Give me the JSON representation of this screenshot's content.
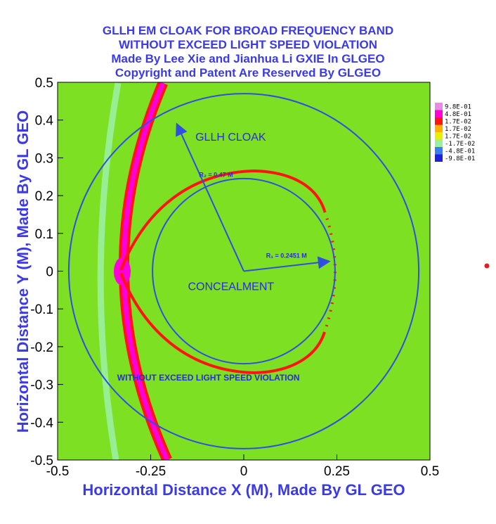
{
  "titles": [
    "GLLH EM CLOAK FOR BROAD FREQUENCY BAND",
    "WITHOUT EXCEED LIGHT SPEED VIOLATION",
    "Made By Lee Xie and Jianhua Li GXIE In GLGEO",
    "Copyright and Patent Are Reserved By GLGEO"
  ],
  "chart_data": {
    "type": "heatmap",
    "xlabel": "Horizontal Distance X (M), Made By GL GEO",
    "ylabel": "Horizontal Distance Y (M), Made By GL GEO",
    "xlim": [
      -0.5,
      0.5
    ],
    "ylim": [
      -0.5,
      0.5
    ],
    "xticks": [
      -0.5,
      -0.25,
      0,
      0.25,
      0.5
    ],
    "xtick_labels": [
      "-0.5",
      "-0.25",
      "0",
      "0.25",
      "0.5"
    ],
    "yticks": [
      0.5,
      0.4,
      0.3,
      0.2,
      0.1,
      0,
      -0.1,
      -0.2,
      -0.3,
      -0.4,
      -0.5
    ],
    "ytick_labels": [
      "0.5",
      "0.4",
      "0.3",
      "0.2",
      "0.1",
      "0",
      "-0.1",
      "-0.2",
      "-0.3",
      "-0.4",
      "-0.5"
    ],
    "background_color": "#7ee022",
    "circles": [
      {
        "radius": 0.47,
        "color": "#2e4fe0"
      },
      {
        "radius": 0.2451,
        "color": "#2e4fe0"
      }
    ],
    "arrows": [
      {
        "from": [
          0,
          0
        ],
        "to": [
          -0.18,
          0.39
        ]
      },
      {
        "from": [
          0,
          0
        ],
        "to": [
          0.23,
          0.026
        ]
      }
    ],
    "annotations": [
      {
        "text": "GLLH CLOAK",
        "x": -0.13,
        "y": 0.345,
        "size": 16
      },
      {
        "text": "R₂ = 0.47 M",
        "x": -0.12,
        "y": 0.25,
        "size": 9
      },
      {
        "text": "R₁ = 0.2451 M",
        "x": 0.06,
        "y": 0.035,
        "size": 9
      },
      {
        "text": "CONCEALMENT",
        "x": -0.15,
        "y": -0.05,
        "size": 16
      },
      {
        "text": "WITHOUT EXCEED LIGHT SPEED VIOLATION",
        "x": -0.34,
        "y": -0.29,
        "size": 12
      }
    ],
    "legend": {
      "placement": "right",
      "entries": [
        {
          "label": "9.8E-01",
          "color": "#e68ce6"
        },
        {
          "label": "4.8E-01",
          "color": "#ff00d8"
        },
        {
          "label": "1.7E-02",
          "color": "#ff1414"
        },
        {
          "label": "1.7E-02",
          "color": "#ffb000"
        },
        {
          "label": "1.7E-02",
          "color": "#e8f000"
        },
        {
          "label": "-1.7E-02",
          "color": "#9af0a0"
        },
        {
          "label": "-4.8E-01",
          "color": "#3a7ff0"
        },
        {
          "label": "-9.8E-01",
          "color": "#2020e0"
        }
      ]
    }
  }
}
